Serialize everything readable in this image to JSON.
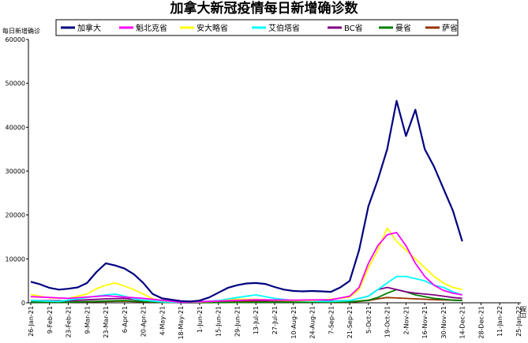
{
  "title": "加拿大新冠疫情每日新增确诊数",
  "chart_data": {
    "type": "line",
    "title": "加拿大新冠疫情每日新增确诊数",
    "ylabel": "每日新增确诊",
    "xlabel": "",
    "ylim": [
      0,
      60000
    ],
    "yticks": [
      "0",
      "10000",
      "20000",
      "30000",
      "40000",
      "50000",
      "60000"
    ],
    "x_tick_labels": [
      "26-Jan-21",
      "9-Feb-21",
      "23-Feb-21",
      "9-Mar-21",
      "23-Mar-21",
      "6-Apr-21",
      "20-Apr-21",
      "4-May-21",
      "18-May-21",
      "1-Jun-21",
      "15-Jun-21",
      "29-Jun-21",
      "13-Jul-21",
      "27-Jul-21",
      "10-Aug-21",
      "24-Aug-21",
      "7-Sep-21",
      "21-Sep-21",
      "5-Oct-21",
      "19-Oct-21",
      "2-Nov-21",
      "16-Nov-21",
      "30-Nov-21",
      "14-Dec-21",
      "28-Dec-21",
      "11-Jan-22",
      "25-Jan-22"
    ],
    "x_last_label_extra": "日期",
    "grid": false,
    "legend_position": "top",
    "series": [
      {
        "name": "加拿大",
        "color": "#000080",
        "points": [
          [
            0,
            4800
          ],
          [
            1,
            4200
          ],
          [
            2,
            3400
          ],
          [
            3,
            3000
          ],
          [
            4,
            3200
          ],
          [
            5,
            3500
          ],
          [
            6,
            4500
          ],
          [
            7,
            7000
          ],
          [
            8,
            9000
          ],
          [
            9,
            8500
          ],
          [
            10,
            7800
          ],
          [
            11,
            6500
          ],
          [
            12,
            4500
          ],
          [
            13,
            2000
          ],
          [
            14,
            1000
          ],
          [
            15,
            700
          ],
          [
            16,
            400
          ],
          [
            17,
            300
          ],
          [
            18,
            500
          ],
          [
            19,
            1200
          ],
          [
            20,
            2300
          ],
          [
            21,
            3400
          ],
          [
            22,
            4000
          ],
          [
            23,
            4400
          ],
          [
            24,
            4500
          ],
          [
            25,
            4300
          ],
          [
            26,
            3600
          ],
          [
            27,
            3000
          ],
          [
            28,
            2700
          ],
          [
            29,
            2600
          ],
          [
            30,
            2700
          ],
          [
            31,
            2600
          ],
          [
            32,
            2500
          ],
          [
            33,
            3500
          ],
          [
            34,
            5000
          ],
          [
            35,
            12000
          ],
          [
            36,
            22000
          ],
          [
            37,
            28000
          ],
          [
            38,
            35000
          ],
          [
            39,
            46000
          ],
          [
            40,
            38000
          ],
          [
            41,
            44000
          ],
          [
            42,
            35000
          ],
          [
            43,
            31000
          ],
          [
            44,
            26000
          ],
          [
            45,
            21000
          ],
          [
            46,
            14000
          ]
        ]
      },
      {
        "name": "魁北克省",
        "color": "#ff00ff",
        "points": [
          [
            0,
            1400
          ],
          [
            4,
            1000
          ],
          [
            8,
            1600
          ],
          [
            12,
            1000
          ],
          [
            16,
            150
          ],
          [
            20,
            400
          ],
          [
            24,
            700
          ],
          [
            28,
            600
          ],
          [
            32,
            700
          ],
          [
            34,
            1500
          ],
          [
            35,
            3500
          ],
          [
            36,
            9000
          ],
          [
            37,
            13000
          ],
          [
            38,
            15500
          ],
          [
            39,
            16000
          ],
          [
            40,
            13000
          ],
          [
            41,
            9000
          ],
          [
            42,
            6000
          ],
          [
            43,
            4000
          ],
          [
            44,
            2800
          ],
          [
            45,
            2200
          ],
          [
            46,
            1800
          ]
        ]
      },
      {
        "name": "安大略省",
        "color": "#ffff00",
        "points": [
          [
            0,
            1900
          ],
          [
            2,
            1100
          ],
          [
            4,
            1000
          ],
          [
            6,
            2000
          ],
          [
            7,
            3200
          ],
          [
            8,
            4000
          ],
          [
            9,
            4500
          ],
          [
            10,
            3800
          ],
          [
            11,
            3000
          ],
          [
            12,
            2000
          ],
          [
            13,
            900
          ],
          [
            14,
            500
          ],
          [
            16,
            200
          ],
          [
            18,
            200
          ],
          [
            20,
            400
          ],
          [
            22,
            800
          ],
          [
            24,
            800
          ],
          [
            26,
            600
          ],
          [
            28,
            500
          ],
          [
            30,
            500
          ],
          [
            32,
            800
          ],
          [
            34,
            1300
          ],
          [
            35,
            3000
          ],
          [
            36,
            8000
          ],
          [
            37,
            12000
          ],
          [
            38,
            17000
          ],
          [
            39,
            14000
          ],
          [
            40,
            12000
          ],
          [
            41,
            10000
          ],
          [
            42,
            8000
          ],
          [
            43,
            6000
          ],
          [
            44,
            4500
          ],
          [
            45,
            3500
          ],
          [
            46,
            3000
          ]
        ]
      },
      {
        "name": "艾伯塔省",
        "color": "#00ffff",
        "points": [
          [
            0,
            500
          ],
          [
            3,
            300
          ],
          [
            6,
            1200
          ],
          [
            8,
            1800
          ],
          [
            9,
            2000
          ],
          [
            10,
            1500
          ],
          [
            11,
            900
          ],
          [
            12,
            600
          ],
          [
            14,
            200
          ],
          [
            16,
            100
          ],
          [
            18,
            200
          ],
          [
            20,
            500
          ],
          [
            22,
            1200
          ],
          [
            24,
            1800
          ],
          [
            26,
            1000
          ],
          [
            28,
            500
          ],
          [
            30,
            350
          ],
          [
            32,
            300
          ],
          [
            34,
            500
          ],
          [
            36,
            1500
          ],
          [
            37,
            3000
          ],
          [
            38,
            4500
          ],
          [
            39,
            6000
          ],
          [
            40,
            6000
          ],
          [
            41,
            5500
          ],
          [
            42,
            5000
          ],
          [
            43,
            4000
          ],
          [
            44,
            3500
          ],
          [
            45,
            2500
          ],
          [
            46,
            1800
          ]
        ]
      },
      {
        "name": "BC省",
        "color": "#800080",
        "points": [
          [
            0,
            500
          ],
          [
            4,
            450
          ],
          [
            8,
            900
          ],
          [
            10,
            1000
          ],
          [
            12,
            600
          ],
          [
            14,
            200
          ],
          [
            16,
            50
          ],
          [
            18,
            100
          ],
          [
            20,
            400
          ],
          [
            22,
            650
          ],
          [
            24,
            600
          ],
          [
            26,
            500
          ],
          [
            28,
            550
          ],
          [
            30,
            500
          ],
          [
            32,
            400
          ],
          [
            34,
            500
          ],
          [
            36,
            1500
          ],
          [
            37,
            3000
          ],
          [
            38,
            3500
          ],
          [
            39,
            3000
          ],
          [
            40,
            2500
          ],
          [
            41,
            2200
          ],
          [
            42,
            2000
          ],
          [
            43,
            1800
          ],
          [
            44,
            1500
          ],
          [
            45,
            1200
          ],
          [
            46,
            1000
          ]
        ]
      },
      {
        "name": "曼省",
        "color": "#008000",
        "points": [
          [
            0,
            150
          ],
          [
            4,
            100
          ],
          [
            8,
            400
          ],
          [
            10,
            500
          ],
          [
            12,
            300
          ],
          [
            14,
            100
          ],
          [
            16,
            30
          ],
          [
            18,
            30
          ],
          [
            20,
            50
          ],
          [
            24,
            100
          ],
          [
            28,
            150
          ],
          [
            32,
            150
          ],
          [
            34,
            200
          ],
          [
            36,
            600
          ],
          [
            37,
            1200
          ],
          [
            38,
            2200
          ],
          [
            39,
            3000
          ],
          [
            40,
            2500
          ],
          [
            41,
            1800
          ],
          [
            42,
            1400
          ],
          [
            43,
            1000
          ],
          [
            44,
            800
          ],
          [
            45,
            600
          ],
          [
            46,
            500
          ]
        ]
      },
      {
        "name": "萨省",
        "color": "#993300",
        "points": [
          [
            0,
            200
          ],
          [
            4,
            150
          ],
          [
            8,
            300
          ],
          [
            10,
            400
          ],
          [
            12,
            200
          ],
          [
            14,
            100
          ],
          [
            16,
            50
          ],
          [
            18,
            50
          ],
          [
            20,
            150
          ],
          [
            24,
            400
          ],
          [
            28,
            200
          ],
          [
            32,
            100
          ],
          [
            34,
            150
          ],
          [
            36,
            500
          ],
          [
            37,
            900
          ],
          [
            38,
            1200
          ],
          [
            39,
            1100
          ],
          [
            40,
            1000
          ],
          [
            41,
            900
          ],
          [
            42,
            800
          ],
          [
            43,
            700
          ],
          [
            44,
            650
          ],
          [
            45,
            600
          ],
          [
            46,
            550
          ]
        ]
      }
    ]
  }
}
